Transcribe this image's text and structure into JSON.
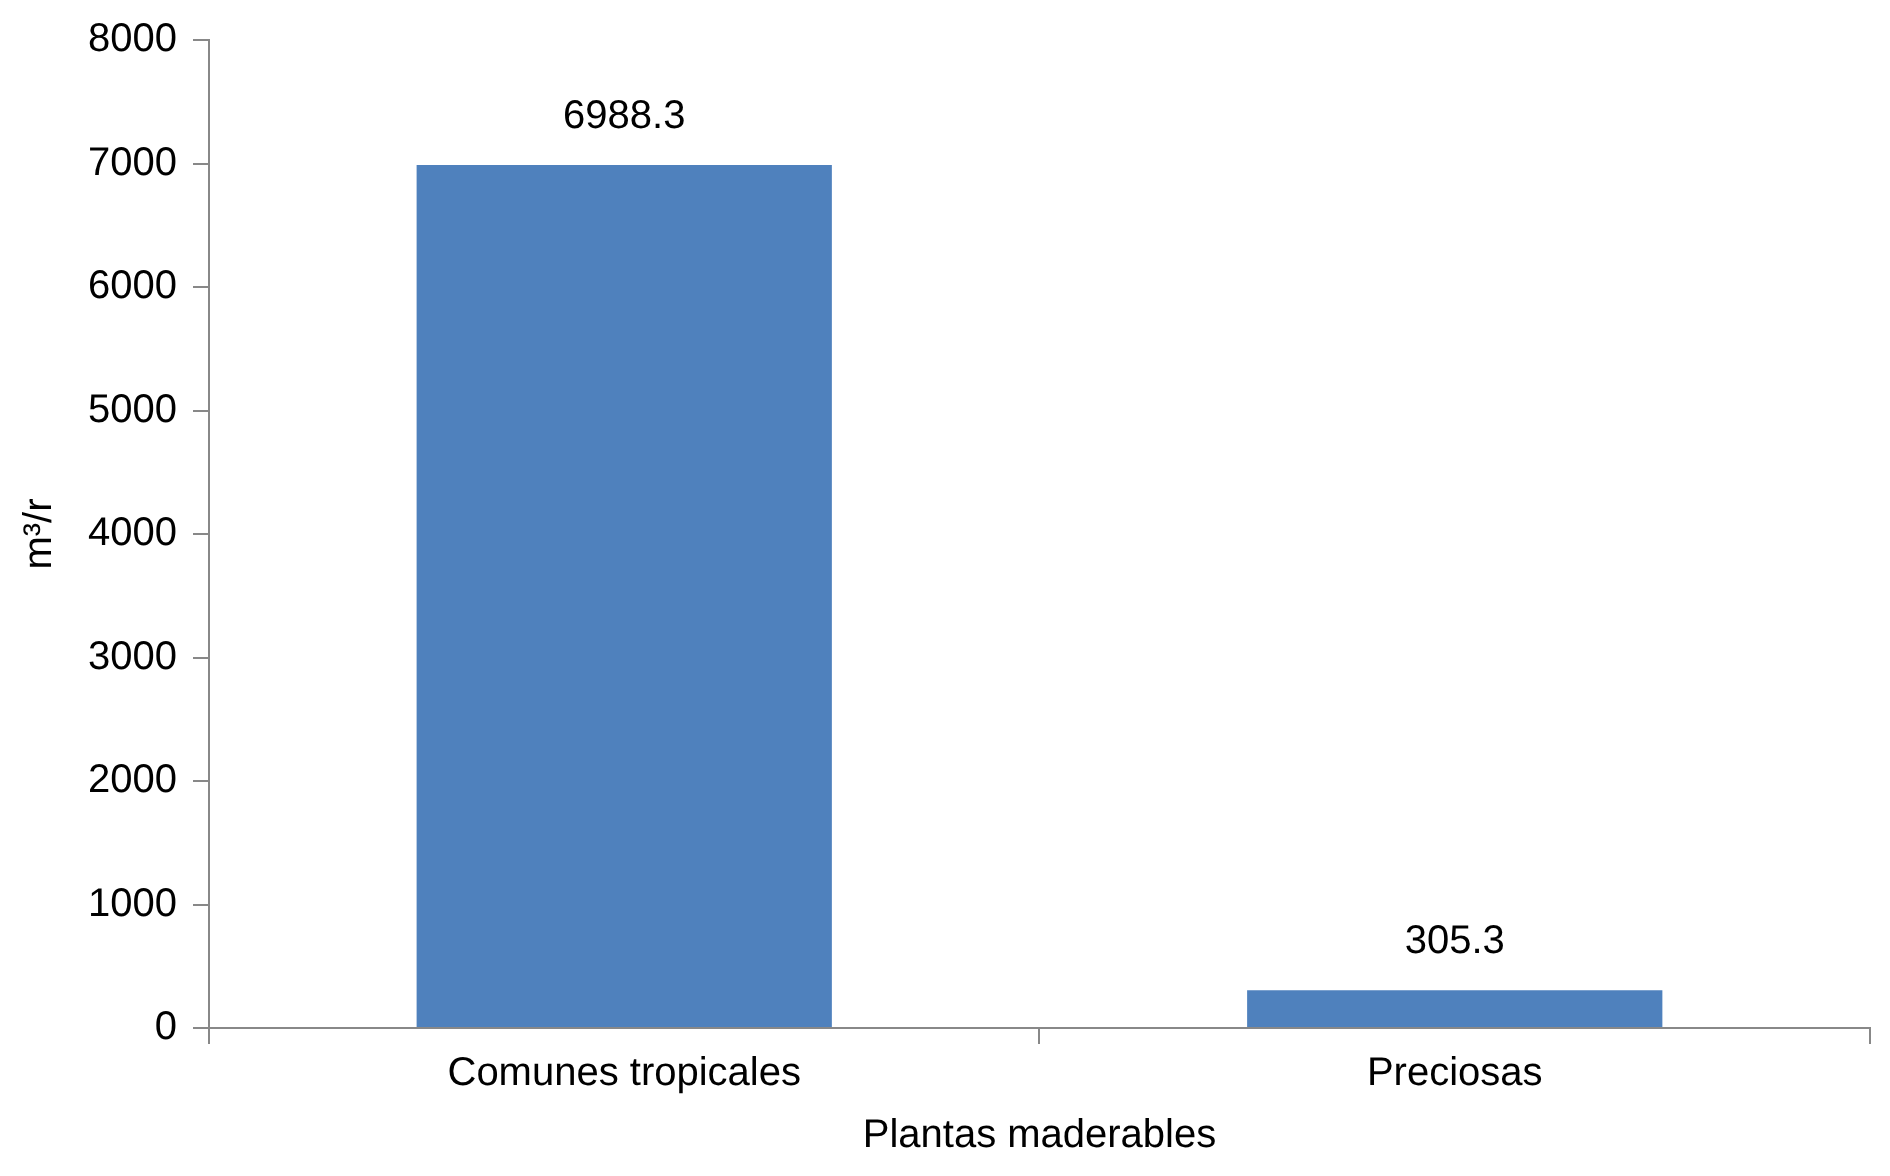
{
  "chart_data": {
    "type": "bar",
    "xlabel": "Plantas maderables",
    "ylabel": "m³/r",
    "categories": [
      "Comunes tropicales",
      "Preciosas"
    ],
    "values": [
      6988.3,
      305.3
    ],
    "color": "#4f81bd",
    "ylim": [
      0,
      8000
    ],
    "yticks": [
      0,
      1000,
      2000,
      3000,
      4000,
      5000,
      6000,
      7000,
      8000
    ],
    "grid": false,
    "legend": false,
    "data_labels": true
  }
}
